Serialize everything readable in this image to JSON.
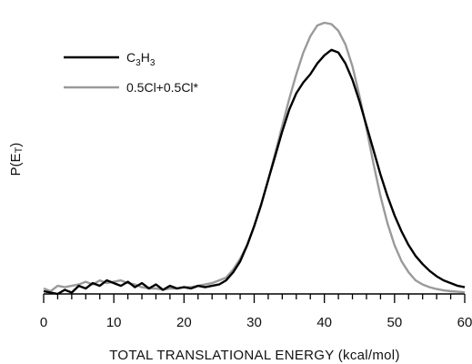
{
  "chart_data": {
    "type": "line",
    "title": "",
    "xlabel": "TOTAL TRANSLATIONAL ENERGY (kcal/mol)",
    "ylabel": "P(ET)",
    "ylabel_main": "P(E",
    "ylabel_sub": "T",
    "ylabel_close": ")",
    "xlim": [
      0,
      60
    ],
    "ylim": [
      0,
      1.0
    ],
    "x_ticks": [
      0,
      10,
      20,
      30,
      40,
      50,
      60
    ],
    "x_tick_labels": [
      "0",
      "10",
      "20",
      "30",
      "40",
      "50",
      "60"
    ],
    "x_minor_step": 2,
    "grid": false,
    "legend": {
      "position": "top-left",
      "entries": [
        {
          "main": "C",
          "sub1": "3",
          "mid": "H",
          "sub2": "3",
          "color": "#000000"
        },
        {
          "text": "0.5Cl+0.5Cl*",
          "color": "#9a9a9a"
        }
      ]
    },
    "series": [
      {
        "name": "C3H3",
        "color": "#000000",
        "x": [
          0,
          1,
          2,
          3,
          4,
          5,
          6,
          7,
          8,
          9,
          10,
          11,
          12,
          13,
          14,
          15,
          16,
          17,
          18,
          19,
          20,
          21,
          22,
          23,
          24,
          25,
          26,
          27,
          28,
          29,
          30,
          31,
          32,
          33,
          34,
          35,
          36,
          37,
          38,
          39,
          40,
          41,
          42,
          43,
          44,
          45,
          46,
          47,
          48,
          49,
          50,
          51,
          52,
          53,
          54,
          55,
          56,
          57,
          58,
          59,
          60
        ],
        "y": [
          0.01,
          0.005,
          0.0,
          0.015,
          0.005,
          0.03,
          0.02,
          0.04,
          0.03,
          0.05,
          0.04,
          0.03,
          0.045,
          0.025,
          0.04,
          0.02,
          0.035,
          0.015,
          0.03,
          0.02,
          0.025,
          0.02,
          0.03,
          0.025,
          0.03,
          0.035,
          0.05,
          0.08,
          0.12,
          0.18,
          0.25,
          0.33,
          0.42,
          0.51,
          0.6,
          0.68,
          0.74,
          0.78,
          0.81,
          0.85,
          0.88,
          0.9,
          0.89,
          0.85,
          0.79,
          0.71,
          0.62,
          0.53,
          0.44,
          0.36,
          0.29,
          0.23,
          0.18,
          0.14,
          0.11,
          0.085,
          0.065,
          0.05,
          0.04,
          0.03,
          0.025
        ]
      },
      {
        "name": "0.5Cl+0.5Cl*",
        "color": "#9a9a9a",
        "x": [
          0,
          1,
          2,
          3,
          4,
          5,
          6,
          7,
          8,
          9,
          10,
          11,
          12,
          13,
          14,
          15,
          16,
          17,
          18,
          19,
          20,
          21,
          22,
          23,
          24,
          25,
          26,
          27,
          28,
          29,
          30,
          31,
          32,
          33,
          34,
          35,
          36,
          37,
          38,
          39,
          40,
          41,
          42,
          43,
          44,
          45,
          46,
          47,
          48,
          49,
          50,
          51,
          52,
          53,
          54,
          55,
          56,
          57,
          58,
          59,
          60
        ],
        "y": [
          0.02,
          0.01,
          0.03,
          0.025,
          0.03,
          0.035,
          0.045,
          0.035,
          0.05,
          0.04,
          0.045,
          0.05,
          0.04,
          0.035,
          0.025,
          0.02,
          0.02,
          0.015,
          0.02,
          0.02,
          0.025,
          0.025,
          0.03,
          0.035,
          0.04,
          0.05,
          0.06,
          0.09,
          0.13,
          0.18,
          0.25,
          0.33,
          0.42,
          0.52,
          0.62,
          0.72,
          0.81,
          0.89,
          0.95,
          0.99,
          1.0,
          0.995,
          0.97,
          0.92,
          0.84,
          0.73,
          0.61,
          0.48,
          0.36,
          0.26,
          0.18,
          0.12,
          0.08,
          0.05,
          0.035,
          0.025,
          0.018,
          0.013,
          0.01,
          0.008,
          0.006
        ]
      }
    ]
  }
}
